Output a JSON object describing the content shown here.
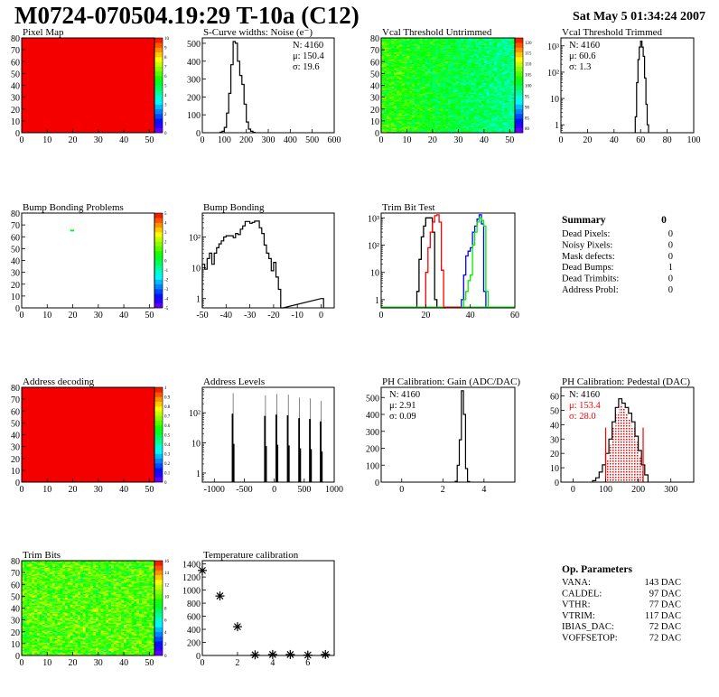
{
  "header": {
    "title": "M0724-070504.19:29 T-10a (C12)",
    "date": "Sat May  5 01:34:24 2007"
  },
  "palette": "rainbow",
  "panels": [
    {
      "id": "pixel-map",
      "title": "Pixel Map",
      "type": "heatmap",
      "xlim": [
        0,
        52
      ],
      "ylim": [
        0,
        80
      ],
      "xticks": [
        0,
        10,
        20,
        30,
        40,
        50
      ],
      "yticks": [
        0,
        10,
        20,
        30,
        40,
        50,
        60,
        70,
        80
      ],
      "zlim": [
        0,
        10
      ],
      "zticks": [
        0,
        1,
        2,
        3,
        4,
        5,
        6,
        7,
        8,
        9,
        10
      ],
      "fill": "uniform",
      "value": 10
    },
    {
      "id": "s-curve",
      "title": "S-Curve widths: Noise (e⁻)",
      "type": "hist",
      "scale": "linear",
      "xlim": [
        0,
        600
      ],
      "ylim": [
        0,
        530
      ],
      "xticks": [
        0,
        100,
        200,
        300,
        400,
        500,
        600
      ],
      "yticks": [
        0,
        100,
        200,
        300,
        400,
        500
      ],
      "bin_width": 10,
      "x": [
        80,
        90,
        100,
        110,
        120,
        130,
        140,
        150,
        160,
        170,
        180,
        190,
        200,
        210,
        220,
        230
      ],
      "y": [
        3,
        8,
        30,
        110,
        220,
        380,
        510,
        500,
        400,
        320,
        270,
        160,
        60,
        20,
        8,
        2
      ],
      "stats": [
        "N: 4160",
        "μ: 150.4",
        "σ: 19.6"
      ]
    },
    {
      "id": "vcal-untrimmed",
      "title": "Vcal Threshold Untrimmed",
      "type": "heatmap",
      "xlim": [
        0,
        52
      ],
      "ylim": [
        0,
        80
      ],
      "xticks": [
        0,
        10,
        20,
        30,
        40,
        50
      ],
      "yticks": [
        0,
        10,
        20,
        30,
        40,
        50,
        60,
        70,
        80
      ],
      "zlim": [
        78,
        122
      ],
      "zticks": [
        80,
        85,
        90,
        95,
        100,
        105,
        110,
        115,
        120
      ],
      "fill": "gradient"
    },
    {
      "id": "vcal-trimmed",
      "title": "Vcal Threshold Trimmed",
      "type": "hist",
      "scale": "log",
      "xlim": [
        0,
        100
      ],
      "ylim": [
        0.5,
        2000
      ],
      "xticks": [
        0,
        20,
        40,
        60,
        80,
        100
      ],
      "yticks": [
        1,
        10,
        100,
        1000
      ],
      "ytick_labels": [
        "1",
        "10",
        "10²",
        "10³"
      ],
      "bin_width": 1,
      "x": [
        56,
        57,
        58,
        59,
        60,
        61,
        62,
        63,
        64,
        65
      ],
      "y": [
        2,
        40,
        300,
        900,
        1500,
        900,
        400,
        60,
        6,
        1
      ],
      "stats": [
        "N: 4160",
        "μ: 60.6",
        "σ:  1.3"
      ]
    },
    {
      "id": "bump-problems",
      "title": "Bump Bonding Problems",
      "type": "heatmap",
      "xlim": [
        0,
        52
      ],
      "ylim": [
        0,
        80
      ],
      "xticks": [
        0,
        10,
        20,
        30,
        40,
        50
      ],
      "yticks": [
        0,
        10,
        20,
        30,
        40,
        50,
        60,
        70,
        80
      ],
      "zlim": [
        -5,
        5
      ],
      "zticks": [
        -5,
        -4,
        -3,
        -2,
        -1,
        0,
        1,
        2,
        3,
        4,
        5
      ],
      "fill": "sparse",
      "points": [
        {
          "col": 19,
          "row": 65,
          "value": 1
        }
      ]
    },
    {
      "id": "bump-bonding",
      "title": "Bump Bonding",
      "type": "hist",
      "scale": "log",
      "xlim": [
        -50,
        5.5
      ],
      "ylim": [
        0.5,
        600
      ],
      "xticks": [
        -50,
        -40,
        -30,
        -20,
        -10,
        0
      ],
      "yticks": [
        1,
        10,
        100
      ],
      "ytick_labels": [
        "1",
        "10",
        "10²"
      ],
      "bin_width": 1,
      "x": [
        -50,
        -49,
        -48,
        -47,
        -46,
        -45,
        -44,
        -43,
        -42,
        -41,
        -40,
        -39,
        -38,
        -37,
        -36,
        -35,
        -34,
        -33,
        -32,
        -31,
        -30,
        -29,
        -28,
        -27,
        -26,
        -25,
        -24,
        -23,
        -22,
        -21,
        -20,
        -19,
        -18,
        -17,
        0
      ],
      "y": [
        13,
        9,
        20,
        30,
        13,
        30,
        45,
        60,
        75,
        100,
        110,
        110,
        110,
        95,
        130,
        120,
        180,
        230,
        320,
        320,
        280,
        300,
        330,
        330,
        200,
        130,
        55,
        30,
        20,
        8,
        15,
        5,
        2,
        0,
        1
      ]
    },
    {
      "id": "trim-bit-test",
      "title": "Trim Bit Test",
      "type": "multihist",
      "scale": "log",
      "xlim": [
        0,
        60
      ],
      "ylim": [
        0.5,
        1500
      ],
      "xticks": [
        0,
        20,
        40,
        60
      ],
      "yticks": [
        1,
        10,
        100,
        1000
      ],
      "ytick_labels": [
        "1",
        "10",
        "10²",
        "10³"
      ],
      "bin_width": 1,
      "series": [
        {
          "color": "#000000",
          "x": [
            16,
            17,
            18,
            19,
            20,
            21,
            22,
            23,
            24
          ],
          "y": [
            2,
            30,
            200,
            500,
            1000,
            1000,
            1000,
            300,
            1
          ]
        },
        {
          "color": "#ff0000",
          "x": [
            20,
            21,
            22,
            23,
            24,
            25,
            26,
            27,
            28
          ],
          "y": [
            10,
            80,
            300,
            700,
            1200,
            1300,
            700,
            12,
            0
          ]
        },
        {
          "color": "#0000ff",
          "x": [
            36,
            37,
            38,
            39,
            40,
            41,
            42,
            43,
            44,
            45,
            46
          ],
          "y": [
            1,
            8,
            40,
            60,
            80,
            300,
            500,
            900,
            1300,
            600,
            2
          ]
        },
        {
          "color": "#00ee00",
          "x": [
            37,
            38,
            39,
            40,
            41,
            42,
            43,
            44,
            45,
            46,
            47
          ],
          "y": [
            1,
            2,
            5,
            8,
            100,
            300,
            700,
            1000,
            800,
            500,
            2
          ]
        }
      ]
    },
    {
      "id": "address-decoding",
      "title": "Address decoding",
      "type": "heatmap",
      "xlim": [
        0,
        52
      ],
      "ylim": [
        0,
        80
      ],
      "xticks": [
        0,
        10,
        20,
        30,
        40,
        50
      ],
      "yticks": [
        0,
        10,
        20,
        30,
        40,
        50,
        60,
        70,
        80
      ],
      "zlim": [
        0,
        1
      ],
      "zticks": [
        0,
        0.1,
        0.2,
        0.3,
        0.4,
        0.5,
        0.6,
        0.7,
        0.8,
        0.9,
        1
      ],
      "fill": "uniform",
      "value": 1
    },
    {
      "id": "address-levels",
      "title": "Address Levels",
      "type": "peaks",
      "scale": "log",
      "xlim": [
        -1200,
        1000
      ],
      "ylim": [
        0.5,
        700
      ],
      "xticks": [
        -1000,
        -500,
        0,
        500,
        1000
      ],
      "yticks": [
        1,
        10,
        100
      ],
      "ytick_labels": [
        "1",
        "10",
        "10²"
      ],
      "peaks": [
        {
          "x": -690,
          "y": 450
        },
        {
          "x": -150,
          "y": 380
        },
        {
          "x": 40,
          "y": 420
        },
        {
          "x": 230,
          "y": 400
        },
        {
          "x": 420,
          "y": 320
        },
        {
          "x": 600,
          "y": 300
        },
        {
          "x": 780,
          "y": 250
        }
      ]
    },
    {
      "id": "ph-gain",
      "title": "PH Calibration: Gain (ADC/DAC)",
      "type": "hist",
      "scale": "linear",
      "xlim": [
        -1,
        5.5
      ],
      "ylim": [
        0,
        560
      ],
      "xticks": [
        0,
        2,
        4
      ],
      "yticks": [
        0,
        100,
        200,
        300,
        400,
        500
      ],
      "bin_width": 0.1,
      "x": [
        2.6,
        2.7,
        2.8,
        2.9,
        3.0,
        3.1,
        3.2
      ],
      "y": [
        5,
        100,
        250,
        540,
        400,
        80,
        3
      ],
      "stats": [
        "N: 4160",
        "μ: 2.91",
        "σ: 0.09"
      ]
    },
    {
      "id": "ph-pedestal",
      "title": "PH Calibration: Pedestal (DAC)",
      "type": "hist",
      "scale": "linear",
      "xlim": [
        -37,
        370
      ],
      "ylim": [
        0,
        66
      ],
      "xticks": [
        0,
        100,
        200,
        300
      ],
      "yticks": [
        0,
        10,
        20,
        30,
        40,
        50,
        60
      ],
      "bin_width": 10,
      "x": [
        60,
        70,
        80,
        90,
        100,
        110,
        120,
        130,
        140,
        150,
        160,
        170,
        180,
        190,
        200,
        210,
        220
      ],
      "y": [
        1,
        3,
        7,
        12,
        20,
        30,
        42,
        52,
        58,
        55,
        52,
        48,
        42,
        32,
        22,
        12,
        5
      ],
      "fit_range": [
        100,
        215
      ],
      "fit_color": "#ff0000",
      "stats": [
        "N: 4160",
        "μ: 153.4",
        "σ: 28.0"
      ],
      "stats_colors": [
        "#000000",
        "#ff0000",
        "#ff0000"
      ]
    },
    {
      "id": "trim-bits",
      "title": "Trim Bits",
      "type": "heatmap",
      "xlim": [
        0,
        52
      ],
      "ylim": [
        0,
        80
      ],
      "xticks": [
        0,
        10,
        20,
        30,
        40,
        50
      ],
      "yticks": [
        0,
        10,
        20,
        30,
        40,
        50,
        60,
        70,
        80
      ],
      "zlim": [
        0,
        16
      ],
      "zticks": [
        0,
        2,
        4,
        6,
        8,
        10,
        12,
        14,
        16
      ],
      "fill": "noise"
    },
    {
      "id": "temperature-calibration",
      "title": "Temperature calibration",
      "type": "scatter",
      "scale": "linear",
      "xlim": [
        0,
        7.5
      ],
      "ylim": [
        0,
        1450
      ],
      "xticks": [
        0,
        2,
        4,
        6
      ],
      "yticks": [
        0,
        200,
        400,
        600,
        800,
        1000,
        1200,
        1400
      ],
      "x": [
        0,
        1,
        2,
        3,
        4,
        5,
        6,
        7
      ],
      "y": [
        1300,
        910,
        440,
        10,
        15,
        15,
        5,
        15
      ],
      "marker": "asterisk"
    }
  ],
  "summary": {
    "title": "Summary",
    "total": "0",
    "rows": [
      {
        "label": "Dead Pixels:",
        "value": "0"
      },
      {
        "label": "Noisy Pixels:",
        "value": "0"
      },
      {
        "label": "Mask defects:",
        "value": "0"
      },
      {
        "label": "Dead Bumps:",
        "value": "1"
      },
      {
        "label": "Dead Trimbits:",
        "value": "0"
      },
      {
        "label": "Address Probl:",
        "value": "0"
      }
    ]
  },
  "op_parameters": {
    "title": "Op. Parameters",
    "rows": [
      {
        "label": "VANA:",
        "value": "143 DAC"
      },
      {
        "label": "CALDEL:",
        "value": "97 DAC"
      },
      {
        "label": "VTHR:",
        "value": "77 DAC"
      },
      {
        "label": "VTRIM:",
        "value": "117 DAC"
      },
      {
        "label": "IBIAS_DAC:",
        "value": "72 DAC"
      },
      {
        "label": "VOFFSETOP:",
        "value": "72 DAC"
      }
    ]
  }
}
